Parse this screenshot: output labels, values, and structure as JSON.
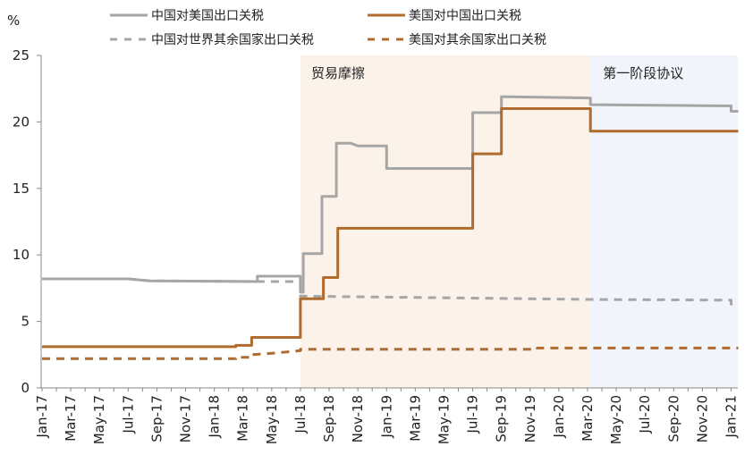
{
  "chart_data": {
    "type": "line",
    "ylabel": "%",
    "ylim": [
      0,
      25
    ],
    "yticks": [
      "0",
      "5",
      "10",
      "15",
      "20",
      "25"
    ],
    "x_tick_labels": [
      "Jan-17",
      "Mar-17",
      "May-17",
      "Jul-17",
      "Sep-17",
      "Nov-17",
      "Jan-18",
      "Mar-18",
      "May-18",
      "Jul-18",
      "Sep-18",
      "Nov-18",
      "Jan-19",
      "Mar-19",
      "May-19",
      "Jul-19",
      "Sep-19",
      "Nov-19",
      "Jan-20",
      "Mar-20",
      "May-20",
      "Jul-20",
      "Sep-20",
      "Nov-20",
      "Jan-21"
    ],
    "grid": false,
    "legend_position": "top",
    "regions": [
      {
        "label": "贸易摩擦",
        "start": 18.0,
        "end": 38.2,
        "color": "#fbf3ea"
      },
      {
        "label": "第一阶段协议",
        "start": 38.2,
        "end": 48.5,
        "color": "#f1f4fa"
      }
    ],
    "series": [
      {
        "name": "中国对美国出口关税",
        "color": "#a6a6a6",
        "dash": false,
        "points": [
          [
            0,
            8.2
          ],
          [
            6,
            8.2
          ],
          [
            7.5,
            8.05
          ],
          [
            15,
            8.0
          ],
          [
            15,
            8.4
          ],
          [
            18,
            8.4
          ],
          [
            18,
            7.2
          ],
          [
            18.2,
            7.2
          ],
          [
            18.2,
            10.1
          ],
          [
            19.5,
            10.1
          ],
          [
            19.5,
            14.4
          ],
          [
            20.5,
            14.4
          ],
          [
            20.5,
            18.4
          ],
          [
            21.5,
            18.4
          ],
          [
            22,
            18.2
          ],
          [
            24,
            18.2
          ],
          [
            24,
            16.5
          ],
          [
            30,
            16.5
          ],
          [
            30,
            20.7
          ],
          [
            32,
            20.7
          ],
          [
            32,
            21.9
          ],
          [
            38.2,
            21.8
          ],
          [
            38.2,
            21.3
          ],
          [
            48,
            21.2
          ],
          [
            48,
            20.8
          ],
          [
            48.5,
            20.8
          ]
        ]
      },
      {
        "name": "美国对中国出口关税",
        "color": "#b06b2e",
        "dash": false,
        "points": [
          [
            0,
            3.1
          ],
          [
            13.5,
            3.1
          ],
          [
            13.5,
            3.2
          ],
          [
            14.6,
            3.2
          ],
          [
            14.6,
            3.8
          ],
          [
            18,
            3.8
          ],
          [
            18,
            6.7
          ],
          [
            19.6,
            6.7
          ],
          [
            19.6,
            8.3
          ],
          [
            20.6,
            8.3
          ],
          [
            20.6,
            12.0
          ],
          [
            30,
            12.0
          ],
          [
            30,
            17.6
          ],
          [
            32,
            17.6
          ],
          [
            32,
            21.0
          ],
          [
            38.2,
            21.0
          ],
          [
            38.2,
            19.3
          ],
          [
            48.5,
            19.3
          ]
        ]
      },
      {
        "name": "中国对世界其余国家出口关税",
        "color": "#a6a6a6",
        "dash": true,
        "points": [
          [
            0,
            8.2
          ],
          [
            6,
            8.2
          ],
          [
            7.5,
            8.05
          ],
          [
            15,
            8.0
          ],
          [
            16,
            8.0
          ],
          [
            18,
            8.0
          ],
          [
            18,
            6.9
          ],
          [
            38,
            6.65
          ],
          [
            48,
            6.6
          ],
          [
            48,
            6.3
          ],
          [
            48.5,
            6.3
          ]
        ]
      },
      {
        "name": "美国对其余国家出口关税",
        "color": "#b06b2e",
        "dash": true,
        "points": [
          [
            0,
            2.2
          ],
          [
            13.5,
            2.2
          ],
          [
            13.5,
            2.3
          ],
          [
            14.6,
            2.3
          ],
          [
            14.6,
            2.5
          ],
          [
            16,
            2.6
          ],
          [
            18,
            2.8
          ],
          [
            18,
            2.9
          ],
          [
            32,
            2.9
          ],
          [
            34.5,
            2.9
          ],
          [
            34.5,
            3.0
          ],
          [
            48.5,
            3.0
          ]
        ]
      }
    ]
  }
}
